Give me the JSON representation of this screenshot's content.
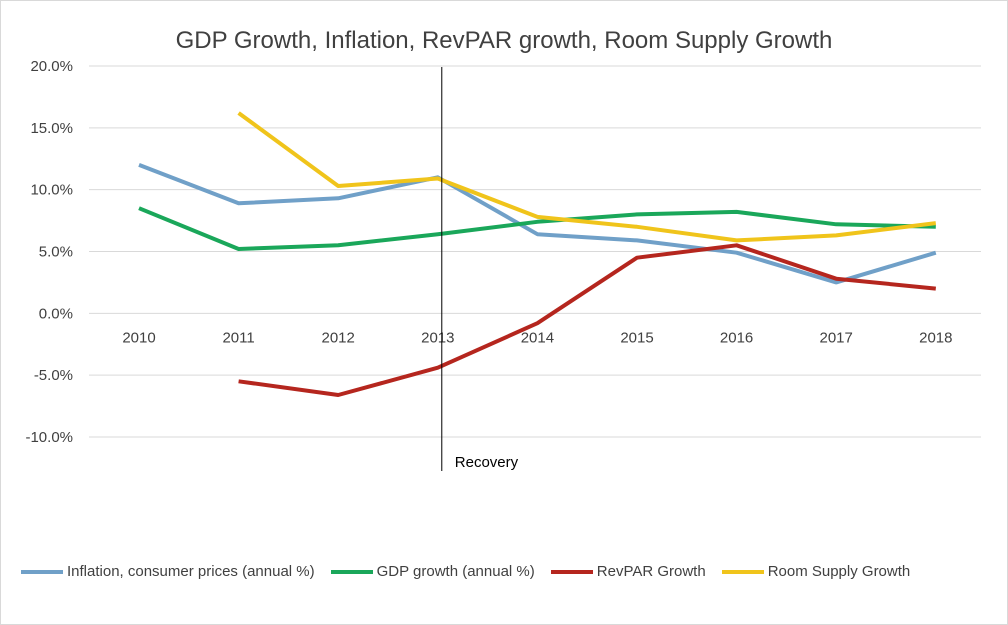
{
  "chart_data": {
    "type": "line",
    "title": "GDP Growth, Inflation, RevPAR growth, Room Supply Growth",
    "categories": [
      "2010",
      "2011",
      "2012",
      "2013",
      "2014",
      "2015",
      "2016",
      "2017",
      "2018"
    ],
    "ylim": [
      -10,
      20
    ],
    "yticks": [
      20,
      15,
      10,
      5,
      0,
      -5,
      -10
    ],
    "ytick_labels": [
      "20.0%",
      "15.0%",
      "10.0%",
      "5.0%",
      "0.0%",
      "-5.0%",
      "-10.0%"
    ],
    "grid": true,
    "legend_position": "bottom",
    "series": [
      {
        "name": "Inflation, consumer prices (annual %)",
        "color": "#70a0c8",
        "values": [
          12.0,
          8.9,
          9.3,
          11.0,
          6.4,
          5.9,
          4.9,
          2.5,
          4.9
        ]
      },
      {
        "name": "GDP growth (annual %)",
        "color": "#1aa75a",
        "values": [
          8.5,
          5.2,
          5.5,
          6.4,
          7.4,
          8.0,
          8.2,
          7.2,
          7.0
        ]
      },
      {
        "name": "RevPAR Growth",
        "color": "#b5261e",
        "values": [
          null,
          -5.5,
          -6.6,
          -4.4,
          -0.8,
          4.5,
          5.5,
          2.8,
          2.0
        ]
      },
      {
        "name": "Room Supply Growth",
        "color": "#f0c41b",
        "values": [
          null,
          16.2,
          10.3,
          10.9,
          7.8,
          7.0,
          5.9,
          6.3,
          7.3
        ]
      }
    ],
    "annotations": [
      {
        "text": "Recovery",
        "x": 2013.03
      }
    ]
  }
}
